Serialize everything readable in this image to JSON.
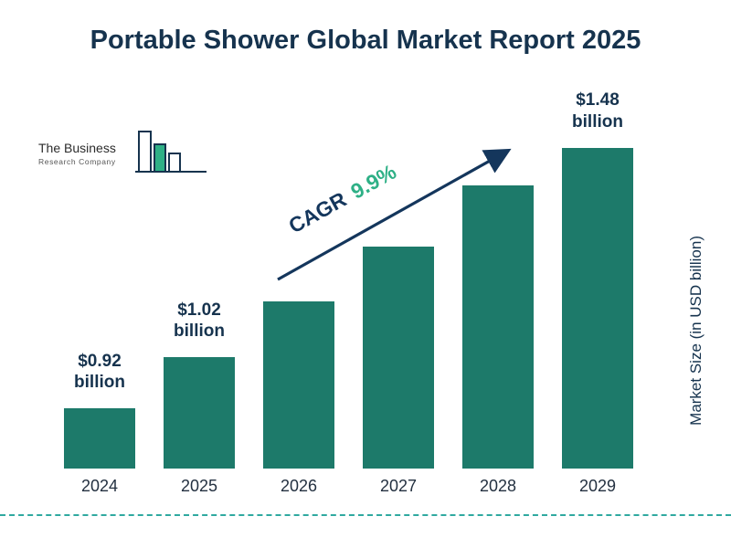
{
  "logo": {
    "line1": "The Business",
    "line2": "Research Company"
  },
  "cagr": {
    "label": "CAGR",
    "value": "9.9%"
  },
  "colors": {
    "bar": "#1d7a6a",
    "title": "#16334e",
    "cagr_value": "#2eb086",
    "arrow": "#14365c",
    "dashed_rule": "#2fa9a0"
  },
  "chart_data": {
    "type": "bar",
    "title": "Portable Shower Global Market Report 2025",
    "categories": [
      "2024",
      "2025",
      "2026",
      "2027",
      "2028",
      "2029"
    ],
    "values": [
      0.92,
      1.02,
      1.13,
      1.24,
      1.36,
      1.48
    ],
    "bar_labels": [
      [
        "$0.92",
        "billion"
      ],
      [
        "$1.02",
        "billion"
      ],
      null,
      null,
      null,
      [
        "$1.48",
        "billion"
      ]
    ],
    "annotation": "CAGR 9.9%",
    "xlabel": "",
    "ylabel": "Market Size (in USD billion)",
    "ylim": [
      0.8,
      1.55
    ],
    "grid": false,
    "legend": "none"
  }
}
